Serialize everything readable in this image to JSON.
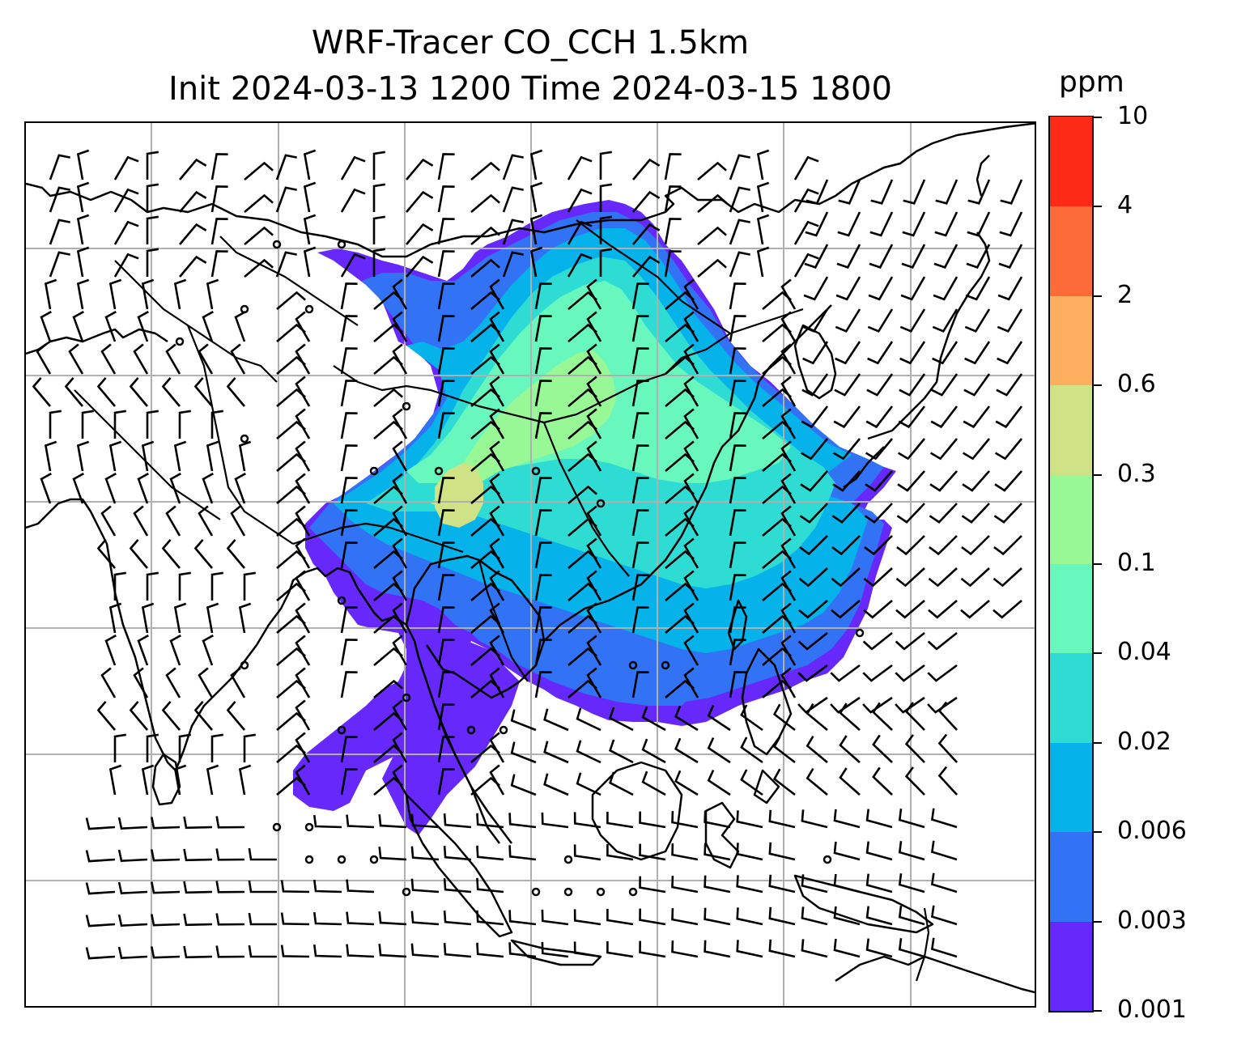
{
  "title": {
    "line1": "WRF-Tracer CO_CCH 1.5km",
    "line2": "Init 2024-03-13 1200 Time 2024-03-15 1800"
  },
  "colorbar": {
    "unit": "ppm",
    "tick_labels": [
      "0.001",
      "0.003",
      "0.006",
      "0.02",
      "0.04",
      "0.1",
      "0.3",
      "0.6",
      "2",
      "4",
      "10"
    ],
    "colors": [
      "#6628fb",
      "#3273f5",
      "#05b2ea",
      "#2edcd3",
      "#68f7bc",
      "#98f896",
      "#cfe286",
      "#fdaf5f",
      "#fd6b38",
      "#fd2a18"
    ]
  },
  "map": {
    "gridlines": true,
    "coastlines": true,
    "country_borders": true,
    "field": "CO_CCH tracer concentration at 1.5km",
    "wind_barbs": true,
    "calm_wind_markers": "circles"
  }
}
